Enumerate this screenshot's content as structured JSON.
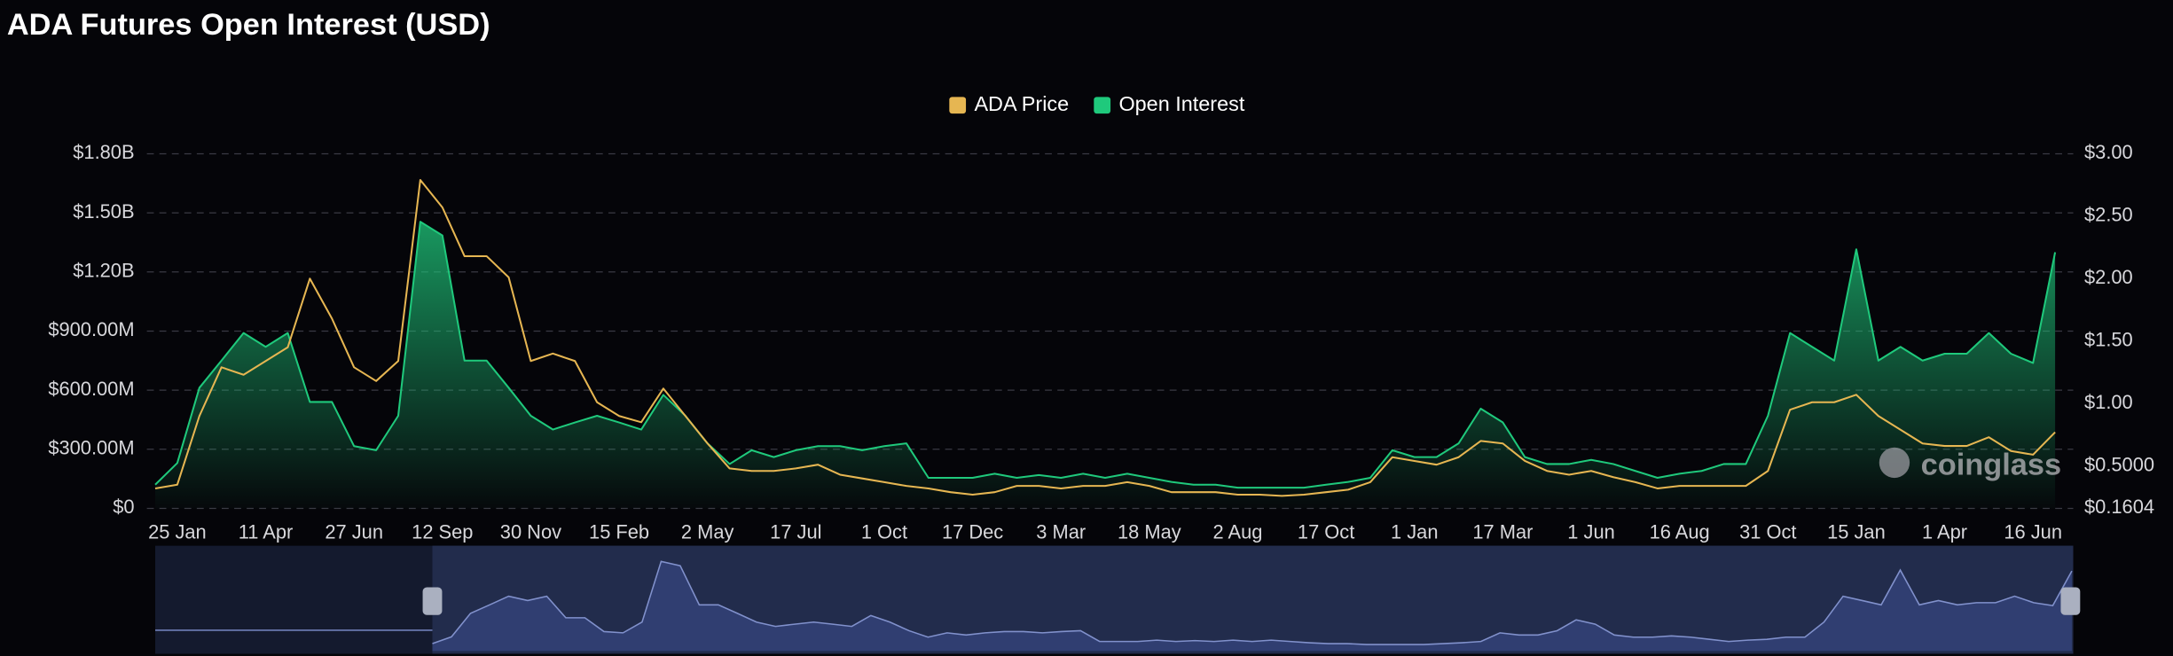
{
  "chart_data": {
    "type": "line",
    "title": "ADA Futures Open Interest (USD)",
    "watermark": "coinglass",
    "legend_position": "top",
    "grid": true,
    "categories": [
      null,
      "25 Jan",
      null,
      null,
      null,
      "11 Apr",
      null,
      null,
      null,
      "27 Jun",
      null,
      null,
      null,
      "12 Sep",
      null,
      null,
      null,
      "30 Nov",
      null,
      null,
      null,
      "15 Feb",
      null,
      null,
      null,
      "2 May",
      null,
      null,
      null,
      "17 Jul",
      null,
      null,
      null,
      "1 Oct",
      null,
      null,
      null,
      "17 Dec",
      null,
      null,
      null,
      "3 Mar",
      null,
      null,
      null,
      "18 May",
      null,
      null,
      null,
      "2 Aug",
      null,
      null,
      null,
      "17 Oct",
      null,
      null,
      null,
      "1 Jan",
      null,
      null,
      null,
      "17 Mar",
      null,
      null,
      null,
      "1 Jun",
      null,
      null,
      null,
      "16 Aug",
      null,
      null,
      null,
      "31 Oct",
      null,
      null,
      null,
      "15 Jan",
      null,
      null,
      null,
      "1 Apr",
      null,
      null,
      null,
      "16 Jun",
      null
    ],
    "series": [
      {
        "name": "ADA Price",
        "color": "#e6b652",
        "axis": "y2",
        "area": false,
        "values": [
          0.32,
          0.35,
          0.9,
          1.29,
          1.23,
          1.34,
          1.45,
          2.0,
          1.68,
          1.29,
          1.18,
          1.34,
          2.79,
          2.57,
          2.18,
          2.18,
          2.01,
          1.34,
          1.4,
          1.34,
          1.01,
          0.9,
          0.85,
          1.12,
          0.9,
          0.68,
          0.48,
          0.46,
          0.46,
          0.48,
          0.51,
          0.43,
          0.4,
          0.37,
          0.34,
          0.32,
          0.29,
          0.27,
          0.29,
          0.34,
          0.34,
          0.32,
          0.34,
          0.34,
          0.37,
          0.34,
          0.29,
          0.29,
          0.29,
          0.27,
          0.27,
          0.26,
          0.27,
          0.29,
          0.31,
          0.37,
          0.57,
          0.54,
          0.51,
          0.57,
          0.7,
          0.68,
          0.54,
          0.46,
          0.43,
          0.46,
          0.41,
          0.37,
          0.32,
          0.34,
          0.34,
          0.34,
          0.34,
          0.46,
          0.95,
          1.01,
          1.01,
          1.07,
          0.9,
          0.79,
          0.68,
          0.66,
          0.66,
          0.73,
          0.62,
          0.59,
          0.77
        ]
      },
      {
        "name": "Open Interest",
        "color": "#1fc97c",
        "area": true,
        "values": [
          120000000.0,
          230000000.0,
          612000000.0,
          750000000.0,
          890000000.0,
          820000000.0,
          890000000.0,
          540000000.0,
          540000000.0,
          316000000.0,
          295000000.0,
          470000000.0,
          1455000000.0,
          1385000000.0,
          750000000.0,
          750000000.0,
          612000000.0,
          470000000.0,
          400000000.0,
          436000000.0,
          470000000.0,
          436000000.0,
          400000000.0,
          576000000.0,
          470000000.0,
          330000000.0,
          225000000.0,
          295000000.0,
          260000000.0,
          295000000.0,
          316000000.0,
          316000000.0,
          295000000.0,
          316000000.0,
          330000000.0,
          155000000.0,
          155000000.0,
          155000000.0,
          176000000.0,
          155000000.0,
          169000000.0,
          155000000.0,
          176000000.0,
          155000000.0,
          176000000.0,
          155000000.0,
          134000000.0,
          120000000.0,
          120000000.0,
          105000000.0,
          105000000.0,
          105000000.0,
          105000000.0,
          120000000.0,
          134000000.0,
          155000000.0,
          295000000.0,
          260000000.0,
          260000000.0,
          330000000.0,
          506000000.0,
          436000000.0,
          260000000.0,
          225000000.0,
          225000000.0,
          246000000.0,
          225000000.0,
          190000000.0,
          155000000.0,
          176000000.0,
          190000000.0,
          225000000.0,
          225000000.0,
          470000000.0,
          890000000.0,
          820000000.0,
          750000000.0,
          1315000000.0,
          750000000.0,
          820000000.0,
          750000000.0,
          785000000.0,
          785000000.0,
          890000000.0,
          785000000.0,
          738000000.0,
          1300000000.0
        ]
      }
    ],
    "ylim": [
      0,
      1800000000
    ],
    "yticks": [
      {
        "value": 0,
        "label": "$0"
      },
      {
        "value": 300000000,
        "label": "$300.00M"
      },
      {
        "value": 600000000,
        "label": "$600.00M"
      },
      {
        "value": 900000000,
        "label": "$900.00M"
      },
      {
        "value": 1200000000,
        "label": "$1.20B"
      },
      {
        "value": 1500000000,
        "label": "$1.50B"
      },
      {
        "value": 1800000000,
        "label": "$1.80B"
      }
    ],
    "y2lim": [
      0.1604,
      3
    ],
    "y2ticks": [
      {
        "value": 0.1604,
        "label": "$0.1604"
      },
      {
        "value": 0.5,
        "label": "$0.5000"
      },
      {
        "value": 1,
        "label": "$1.00"
      },
      {
        "value": 1.5,
        "label": "$1.50"
      },
      {
        "value": 2,
        "label": "$2.00"
      },
      {
        "value": 2.5,
        "label": "$2.50"
      },
      {
        "value": 3,
        "label": "$3.00"
      }
    ]
  }
}
